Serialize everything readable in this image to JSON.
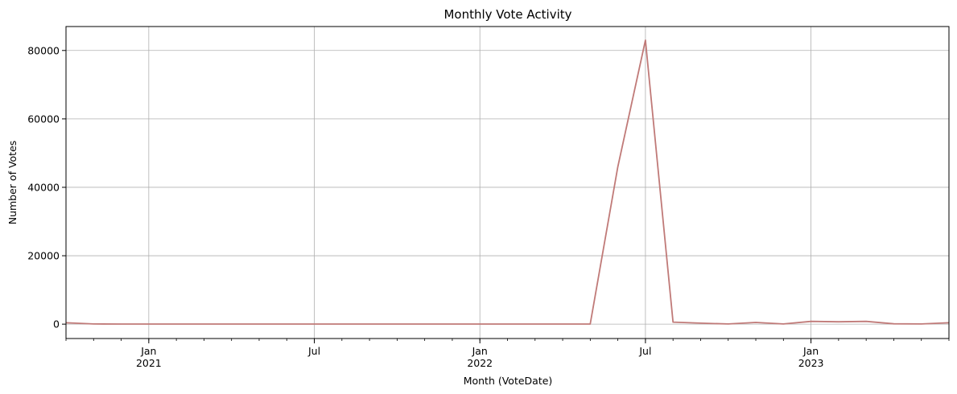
{
  "chart_data": {
    "type": "line",
    "title": "Monthly Vote Activity",
    "xlabel": "Month (VoteDate)",
    "ylabel": "Number of Votes",
    "grid": true,
    "line_color": "#c07a78",
    "x": [
      "2020-10",
      "2020-11",
      "2020-12",
      "2021-01",
      "2021-02",
      "2021-03",
      "2021-04",
      "2021-05",
      "2021-06",
      "2021-07",
      "2021-08",
      "2021-09",
      "2021-10",
      "2021-11",
      "2021-12",
      "2022-01",
      "2022-02",
      "2022-03",
      "2022-04",
      "2022-05",
      "2022-06",
      "2022-07",
      "2022-08",
      "2022-09",
      "2022-10",
      "2022-11",
      "2022-12",
      "2023-01",
      "2023-02",
      "2023-03",
      "2023-04",
      "2023-05",
      "2023-06"
    ],
    "series": [
      {
        "values": [
          400,
          50,
          20,
          20,
          20,
          20,
          20,
          20,
          20,
          20,
          20,
          20,
          20,
          20,
          20,
          20,
          20,
          20,
          20,
          20,
          46000,
          83000,
          600,
          300,
          50,
          500,
          50,
          800,
          700,
          800,
          100,
          50,
          400
        ]
      }
    ],
    "xlim": [
      "2020-10",
      "2023-06"
    ],
    "ylim": [
      -4200,
      87000
    ],
    "yticks": [
      0,
      20000,
      40000,
      60000,
      80000
    ],
    "ytick_labels": [
      "0",
      "20000",
      "40000",
      "60000",
      "80000"
    ],
    "xticks_major": [
      {
        "date": "2021-01",
        "label": "Jan",
        "sublabel": "2021"
      },
      {
        "date": "2021-07",
        "label": "Jul",
        "sublabel": ""
      },
      {
        "date": "2022-01",
        "label": "Jan",
        "sublabel": "2022"
      },
      {
        "date": "2022-07",
        "label": "Jul",
        "sublabel": ""
      },
      {
        "date": "2023-01",
        "label": "Jan",
        "sublabel": "2023"
      }
    ]
  }
}
